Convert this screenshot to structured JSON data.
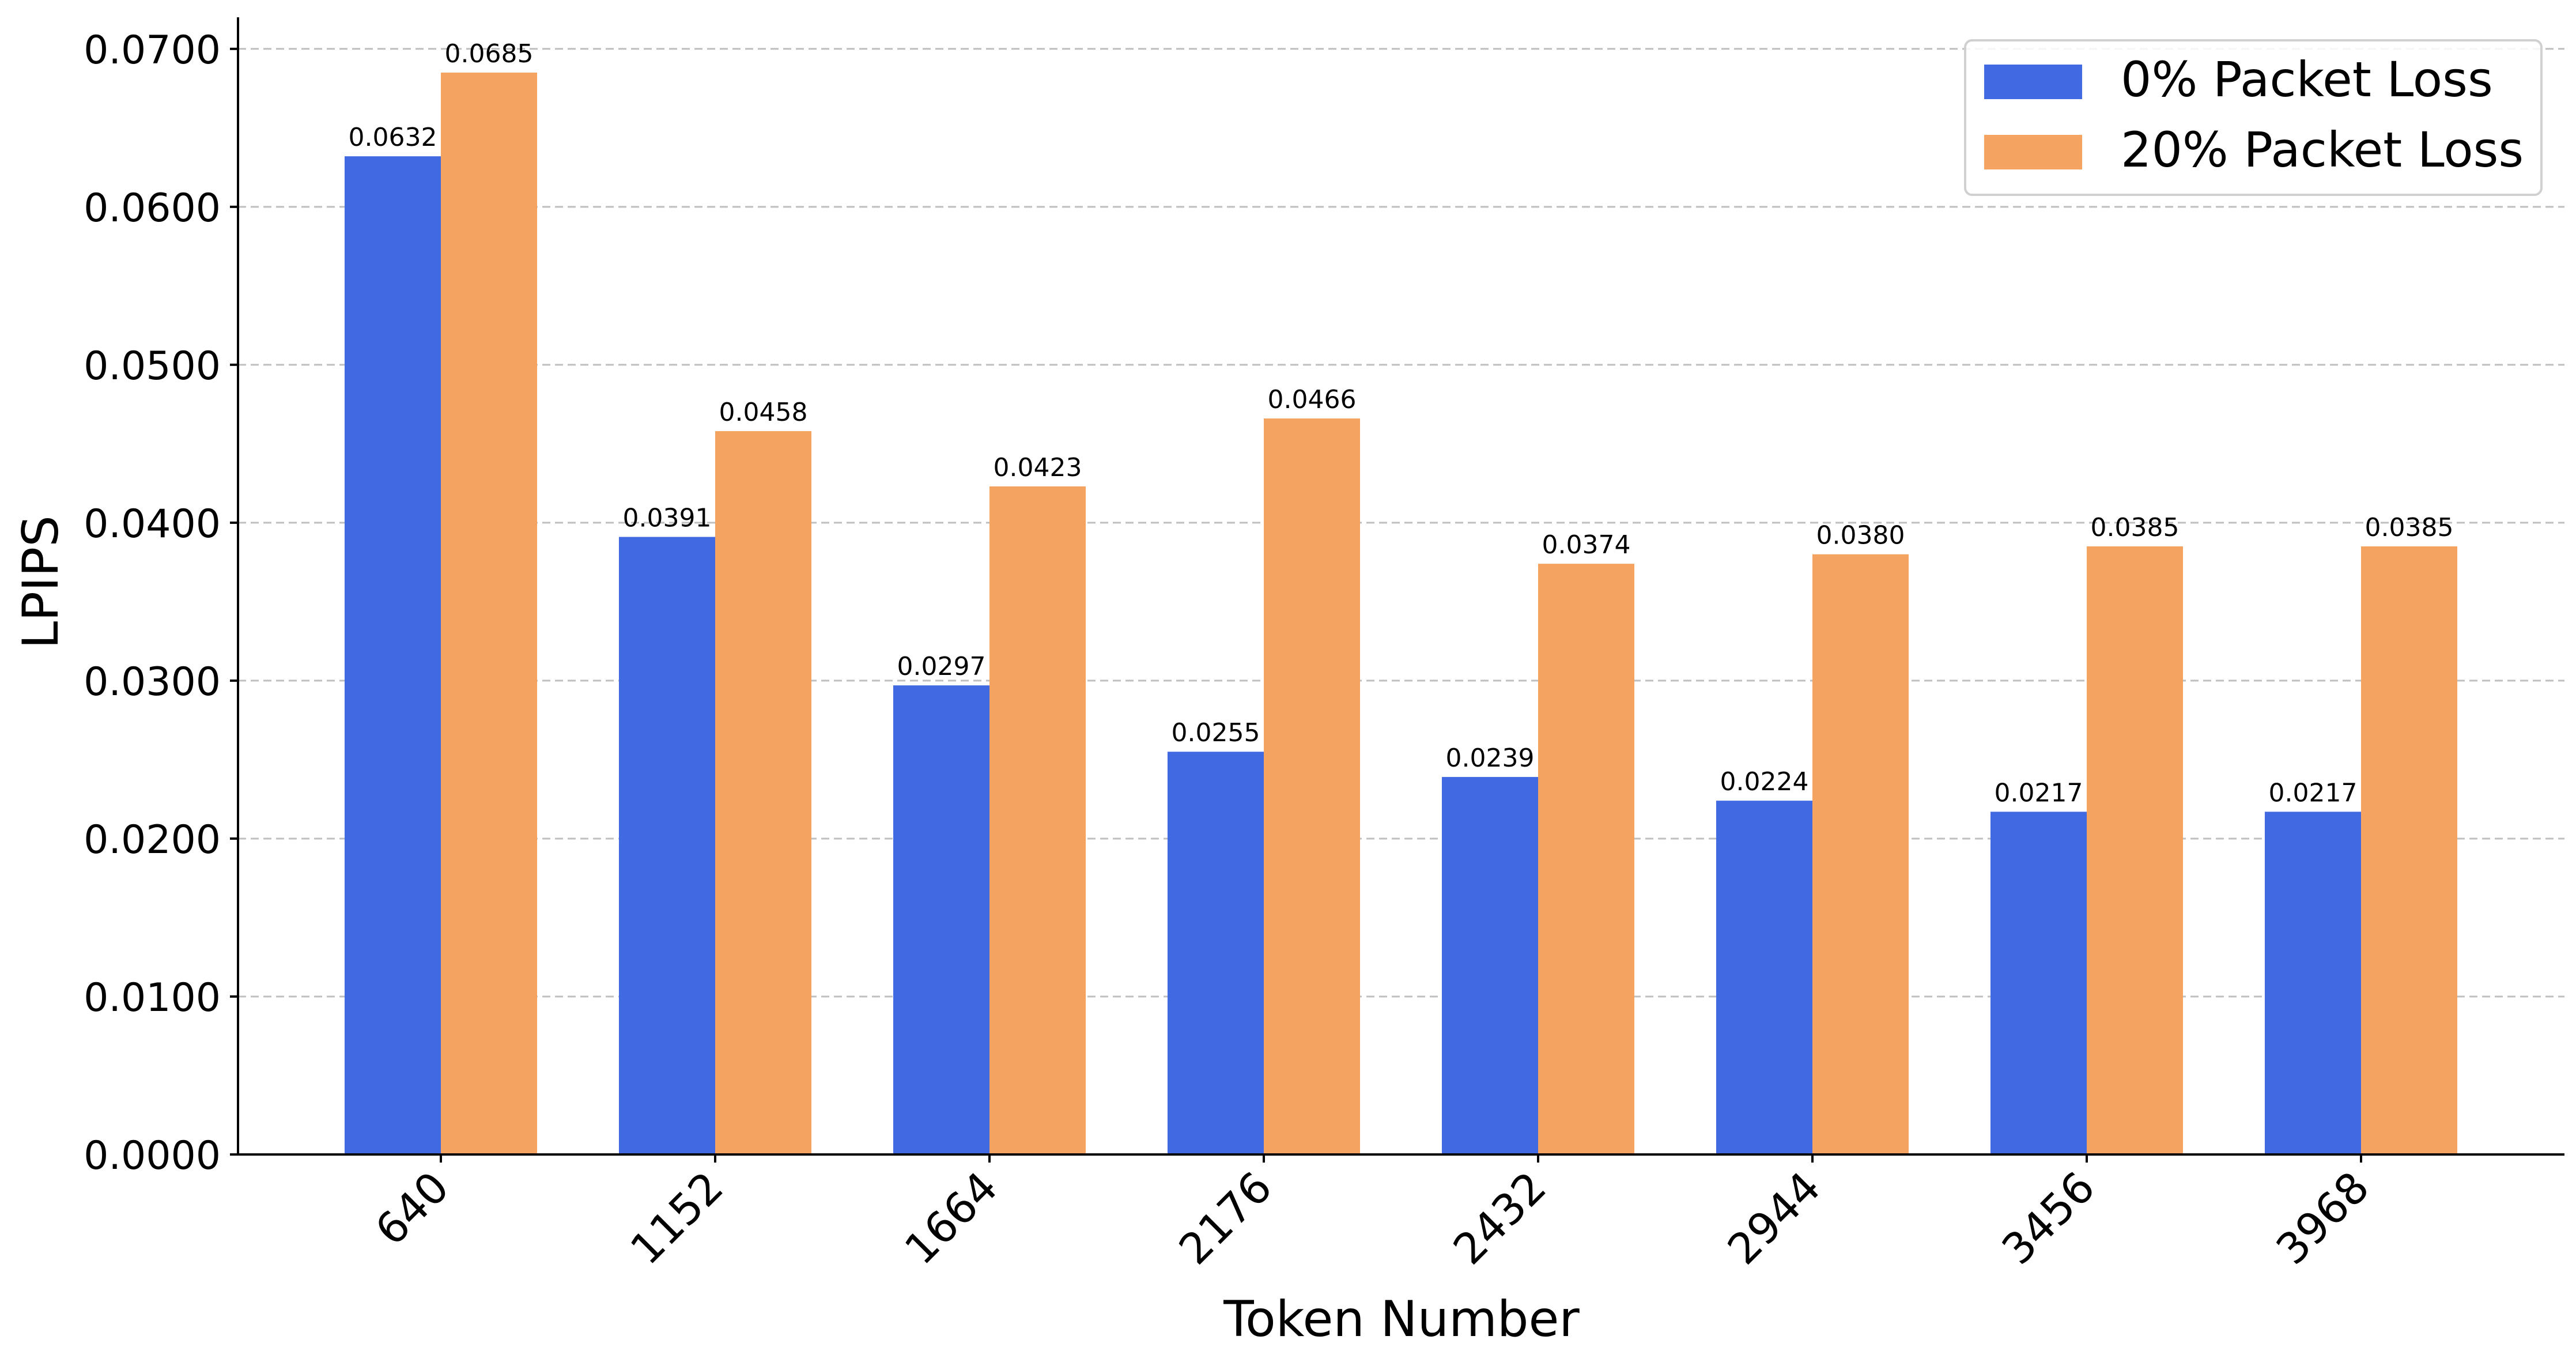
{
  "chart_data": {
    "type": "bar",
    "title": "",
    "xlabel": "Token Number",
    "ylabel": "LPIPS",
    "categories": [
      "640",
      "1152",
      "1664",
      "2176",
      "2432",
      "2944",
      "3456",
      "3968"
    ],
    "series": [
      {
        "name": "0% Packet Loss",
        "color": "#4169E1",
        "values": [
          0.0632,
          0.0391,
          0.0297,
          0.0255,
          0.0239,
          0.0224,
          0.0217,
          0.0217
        ],
        "labels": [
          "0.0632",
          "0.0391",
          "0.0297",
          "0.0255",
          "0.0239",
          "0.0224",
          "0.0217",
          "0.0217"
        ]
      },
      {
        "name": "20% Packet Loss",
        "color": "#F4A460",
        "values": [
          0.0685,
          0.0458,
          0.0423,
          0.0466,
          0.0374,
          0.038,
          0.0385,
          0.0385
        ],
        "labels": [
          "0.0685",
          "0.0458",
          "0.0423",
          "0.0466",
          "0.0374",
          "0.0380",
          "0.0385",
          "0.0385"
        ]
      }
    ],
    "ylim": [
      0,
      0.072
    ],
    "yticks": [
      0,
      0.01,
      0.02,
      0.03,
      0.04,
      0.05,
      0.06,
      0.07
    ],
    "ytick_labels": [
      "0.0000",
      "0.0100",
      "0.0200",
      "0.0300",
      "0.0400",
      "0.0500",
      "0.0600",
      "0.0700"
    ],
    "grid": "y-dashed",
    "legend_position": "top-right",
    "x_tick_rotation": "45"
  }
}
